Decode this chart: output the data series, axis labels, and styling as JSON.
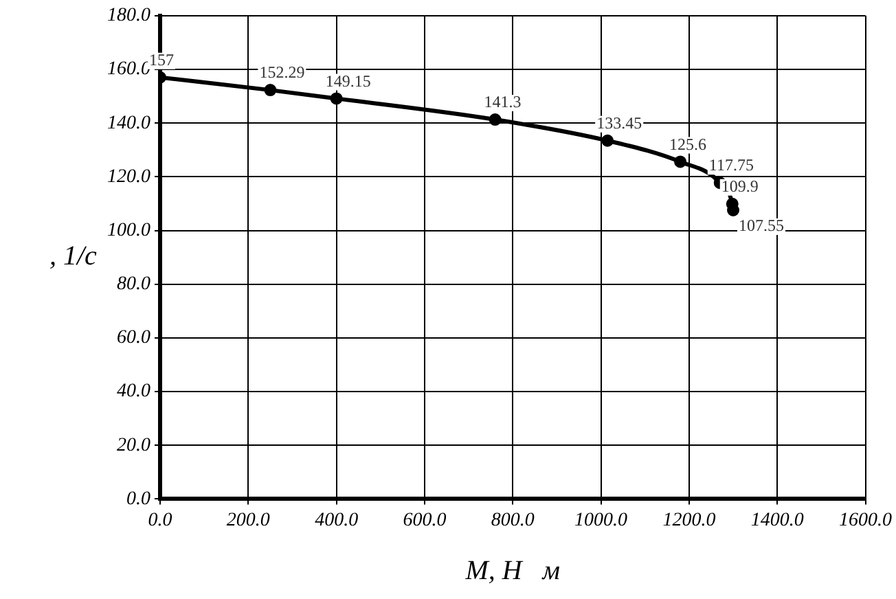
{
  "chart_data": {
    "type": "line",
    "xlabel": "M, H   м",
    "ylabel": ", 1/c",
    "x": [
      0,
      250,
      400,
      760,
      1015,
      1180,
      1270,
      1298,
      1300
    ],
    "series": [
      {
        "color": "#000000",
        "values": [
          157,
          152.29,
          149.15,
          141.3,
          133.45,
          125.6,
          117.75,
          109.9,
          107.55
        ]
      }
    ],
    "xlim": [
      0,
      1600
    ],
    "xticks": [
      {
        "value": 0,
        "label": "0.0"
      },
      {
        "value": 200,
        "label": "200.0"
      },
      {
        "value": 400,
        "label": "400.0"
      },
      {
        "value": 600,
        "label": "600.0"
      },
      {
        "value": 800,
        "label": "800.0"
      },
      {
        "value": 1000,
        "label": "1000.0"
      },
      {
        "value": 1200,
        "label": "1200.0"
      },
      {
        "value": 1400,
        "label": "1400.0"
      },
      {
        "value": 1600,
        "label": "1600.0"
      }
    ],
    "ylim": [
      0,
      180
    ],
    "yticks": [
      {
        "value": 0,
        "label": "0.0"
      },
      {
        "value": 20,
        "label": "20.0"
      },
      {
        "value": 40,
        "label": "40.0"
      },
      {
        "value": 60,
        "label": "60.0"
      },
      {
        "value": 80,
        "label": "80.0"
      },
      {
        "value": 100,
        "label": "100.0"
      },
      {
        "value": 120,
        "label": "120.0"
      },
      {
        "value": 140,
        "label": "140.0"
      },
      {
        "value": 160,
        "label": "160.0"
      },
      {
        "value": 180,
        "label": "180.0"
      }
    ],
    "grid": true,
    "legend": false,
    "marker": "circle",
    "line_style": "solid",
    "data_labels": true
  }
}
